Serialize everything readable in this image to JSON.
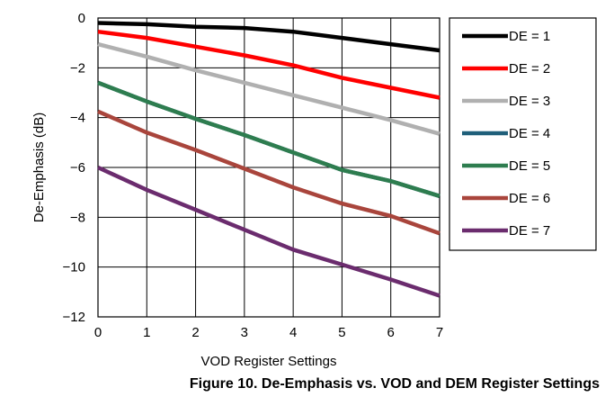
{
  "caption": "Figure 10. De-Emphasis vs. VOD and DEM Register Settings",
  "chart_data": {
    "type": "line",
    "title": "",
    "xlabel": "VOD Register Settings",
    "ylabel": "De-Emphasis (dB)",
    "xlim": [
      0,
      7
    ],
    "ylim": [
      -12,
      0
    ],
    "x_ticks": [
      0,
      1,
      2,
      3,
      4,
      5,
      6,
      7
    ],
    "y_ticks": [
      0,
      -2,
      -4,
      -6,
      -8,
      -10,
      -12
    ],
    "y_tick_labels": [
      "0",
      "−2",
      "−4",
      "−6",
      "−8",
      "−10",
      "−12"
    ],
    "grid": true,
    "legend_position": "right",
    "x": [
      0,
      1,
      2,
      3,
      4,
      5,
      6,
      7
    ],
    "series": [
      {
        "name": "DE = 1",
        "color": "#000000",
        "values": [
          -0.2,
          -0.25,
          -0.35,
          -0.4,
          -0.55,
          -0.8,
          -1.05,
          -1.3
        ]
      },
      {
        "name": "DE = 2",
        "color": "#ff0000",
        "values": [
          -0.55,
          -0.8,
          -1.15,
          -1.5,
          -1.9,
          -2.4,
          -2.8,
          -3.2
        ]
      },
      {
        "name": "DE = 3",
        "color": "#b0b0b0",
        "values": [
          -1.05,
          -1.55,
          -2.1,
          -2.6,
          -3.1,
          -3.6,
          -4.1,
          -4.65
        ]
      },
      {
        "name": "DE = 4",
        "color": "#1f5f7a",
        "values": [
          -2.6,
          -3.35,
          -4.05,
          -4.7,
          -5.4,
          -6.1,
          -6.55,
          -7.15
        ]
      },
      {
        "name": "DE = 5",
        "color": "#2e7d4f",
        "values": [
          -2.6,
          -3.35,
          -4.05,
          -4.7,
          -5.4,
          -6.1,
          -6.55,
          -7.15
        ]
      },
      {
        "name": "DE = 6",
        "color": "#a9453c",
        "values": [
          -3.75,
          -4.6,
          -5.3,
          -6.05,
          -6.8,
          -7.45,
          -7.95,
          -8.65
        ]
      },
      {
        "name": "DE = 7",
        "color": "#6b2c6e",
        "values": [
          -6.0,
          -6.9,
          -7.7,
          -8.5,
          -9.3,
          -9.9,
          -10.5,
          -11.15
        ]
      }
    ]
  }
}
